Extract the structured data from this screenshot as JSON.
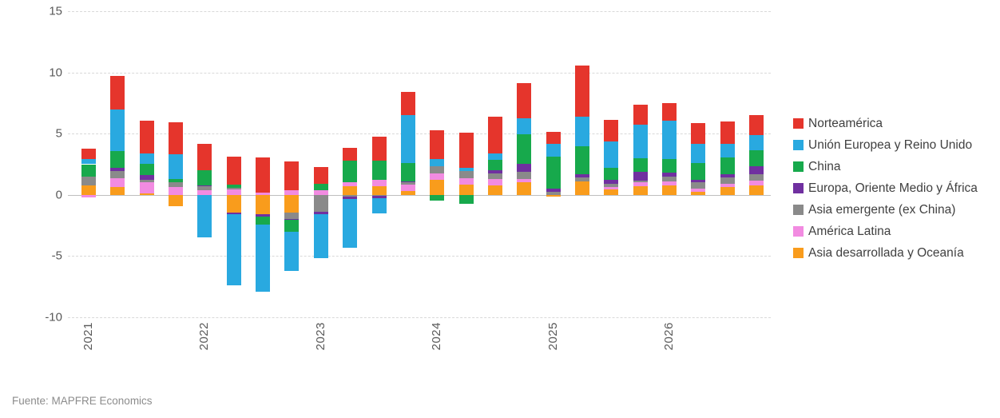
{
  "source": "Fuente: MAPFRE Economics",
  "colors": {
    "grid": "#d9d9d9",
    "zero_line": "#bfbfbf",
    "axis_text": "#595959",
    "legend_text": "#404040",
    "source_text": "#8c8c8c"
  },
  "chart_data": {
    "type": "bar",
    "stacked": true,
    "title": "",
    "xlabel": "",
    "ylabel": "",
    "ylim": [
      -10,
      15
    ],
    "yticks": [
      15,
      10,
      5,
      0,
      -5,
      -10
    ],
    "grid": "horizontal-dashed",
    "legend_position": "right",
    "categories": [
      "2021Q1",
      "2021Q2",
      "2021Q3",
      "2021Q4",
      "2022Q1",
      "2022Q2",
      "2022Q3",
      "2022Q4",
      "2023Q1",
      "2023Q2",
      "2023Q3",
      "2023Q4",
      "2024Q1",
      "2024Q2",
      "2024Q3",
      "2024Q4",
      "2025Q1",
      "2025Q2",
      "2025Q3",
      "2025Q4",
      "2026Q1",
      "2026Q2",
      "2026Q3",
      "2026Q4"
    ],
    "year_tick_labels": [
      "2021",
      "2022",
      "2023",
      "2024",
      "2025",
      "2026"
    ],
    "year_tick_category_index": [
      0,
      4,
      8,
      12,
      16,
      20
    ],
    "stack_order_bottom_to_top": [
      "Asia desarrollada y Oceanía",
      "América Latina",
      "Asia emergente (ex China)",
      "Europa, Oriente Medio y África",
      "China",
      "Unión Europea y Reino Unido",
      "Norteamérica"
    ],
    "series": [
      {
        "name": "Norteamérica",
        "color": "#e5352c",
        "values": [
          0.8,
          2.7,
          2.7,
          2.65,
          2.15,
          2.3,
          2.85,
          2.35,
          1.35,
          1.05,
          1.95,
          1.9,
          2.35,
          2.85,
          3.0,
          2.85,
          1.0,
          4.15,
          1.8,
          1.6,
          1.4,
          1.7,
          1.8,
          1.65
        ]
      },
      {
        "name": "Unión Europea y Reino Unido",
        "color": "#29a9e0",
        "values": [
          0.45,
          3.4,
          0.8,
          2.0,
          -3.5,
          -5.8,
          -5.5,
          -3.2,
          -3.65,
          -3.95,
          -1.2,
          3.9,
          0.6,
          0.25,
          0.55,
          1.3,
          1.05,
          2.45,
          2.15,
          2.75,
          3.15,
          1.55,
          1.1,
          1.25
        ]
      },
      {
        "name": "China",
        "color": "#17a94c",
        "values": [
          1.0,
          1.4,
          0.95,
          0.3,
          1.2,
          0.3,
          -0.65,
          -0.95,
          0.5,
          1.75,
          1.6,
          1.5,
          -0.5,
          -0.7,
          0.85,
          2.4,
          2.6,
          2.25,
          1.0,
          1.15,
          1.1,
          1.35,
          1.35,
          1.3
        ]
      },
      {
        "name": "Europa, Oriente Medio y África",
        "color": "#7030a0",
        "values": [
          0,
          0.25,
          0.35,
          0,
          0.1,
          -0.15,
          -0.2,
          -0.1,
          -0.15,
          -0.2,
          -0.2,
          0.1,
          0,
          0,
          0.25,
          0.7,
          0.25,
          0.25,
          0.3,
          0.7,
          0.35,
          0.2,
          0.3,
          0.65
        ]
      },
      {
        "name": "Asia emergente (ex China)",
        "color": "#8a8a8a",
        "values": [
          0.7,
          0.6,
          0.25,
          0.35,
          0.3,
          0.1,
          0,
          -0.5,
          -1.4,
          -0.15,
          -0.1,
          0.15,
          0.6,
          0.6,
          0.45,
          0.55,
          0.25,
          0.35,
          0.25,
          0.15,
          0.35,
          0.5,
          0.5,
          0.5
        ]
      },
      {
        "name": "América Latina",
        "color": "#f28be1",
        "values": [
          -0.2,
          0.7,
          0.9,
          0.65,
          0.4,
          0.45,
          0.2,
          0.4,
          0.4,
          0.35,
          0.5,
          0.55,
          0.55,
          0.5,
          0.5,
          0.3,
          0,
          0,
          0.2,
          0.3,
          0.37,
          0.28,
          0.26,
          0.36
        ]
      },
      {
        "name": "Asia desarrollada y Oceanía",
        "color": "#f99c1c",
        "values": [
          0.8,
          0.65,
          0.1,
          -0.95,
          0,
          -1.45,
          -1.55,
          -1.45,
          0,
          0.7,
          0.7,
          0.3,
          1.2,
          0.85,
          0.8,
          1.0,
          -0.15,
          1.1,
          0.45,
          0.7,
          0.75,
          0.26,
          0.65,
          0.8
        ]
      }
    ]
  }
}
